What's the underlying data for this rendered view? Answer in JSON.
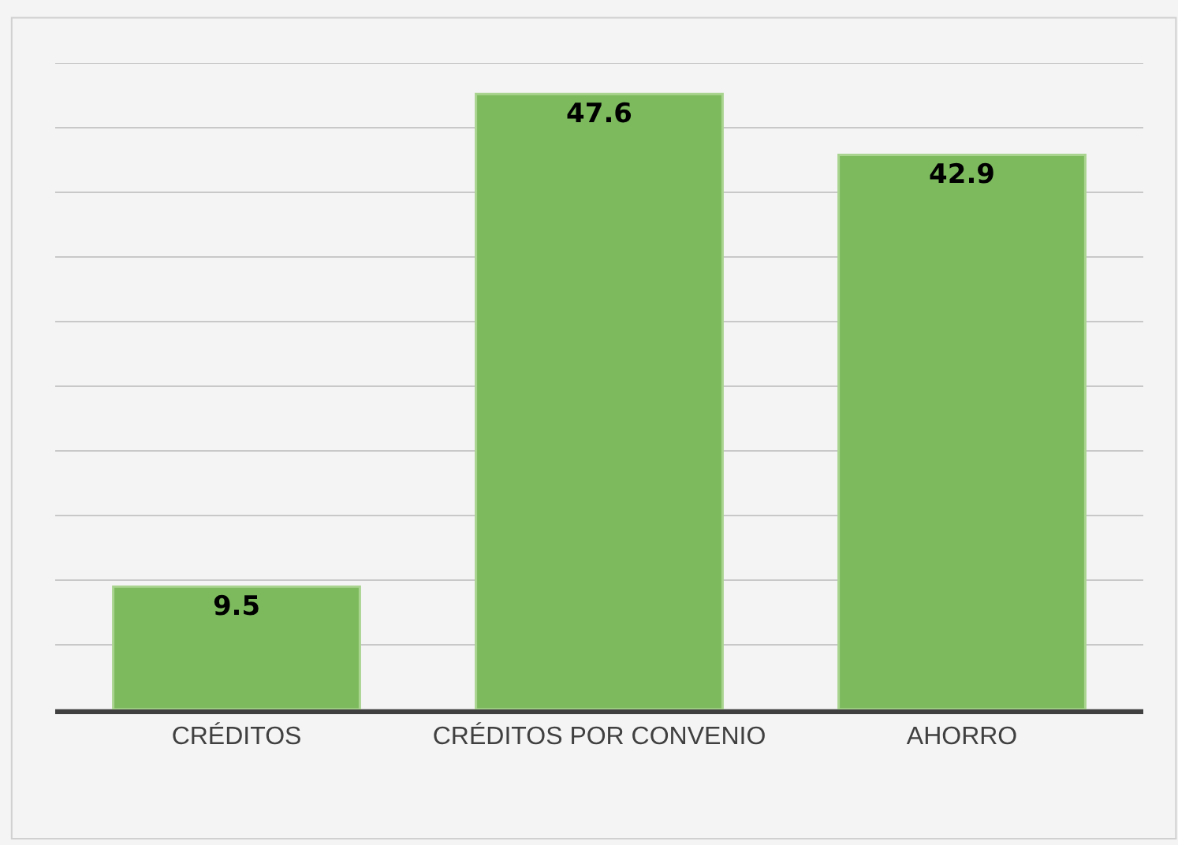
{
  "chart_data": {
    "type": "bar",
    "categories": [
      "CRÉDITOS",
      "CRÉDITOS POR CONVENIO",
      "AHORRO"
    ],
    "values": [
      9.5,
      47.6,
      42.9
    ],
    "color": "#7dba5e",
    "data_labels": true,
    "ylim": [
      0,
      50
    ],
    "yticks": [
      {
        "value": 0,
        "label": null
      },
      {
        "value": 5,
        "label": null
      },
      {
        "value": 10,
        "label": null
      },
      {
        "value": 15,
        "label": null
      },
      {
        "value": 20,
        "label": null
      },
      {
        "value": 25,
        "label": null
      },
      {
        "value": 30,
        "label": null
      },
      {
        "value": 35,
        "label": null
      },
      {
        "value": 40,
        "label": null
      },
      {
        "value": 45,
        "label": null
      },
      {
        "value": 50,
        "label": null
      }
    ],
    "grid": "y",
    "tick_labels": "x"
  }
}
